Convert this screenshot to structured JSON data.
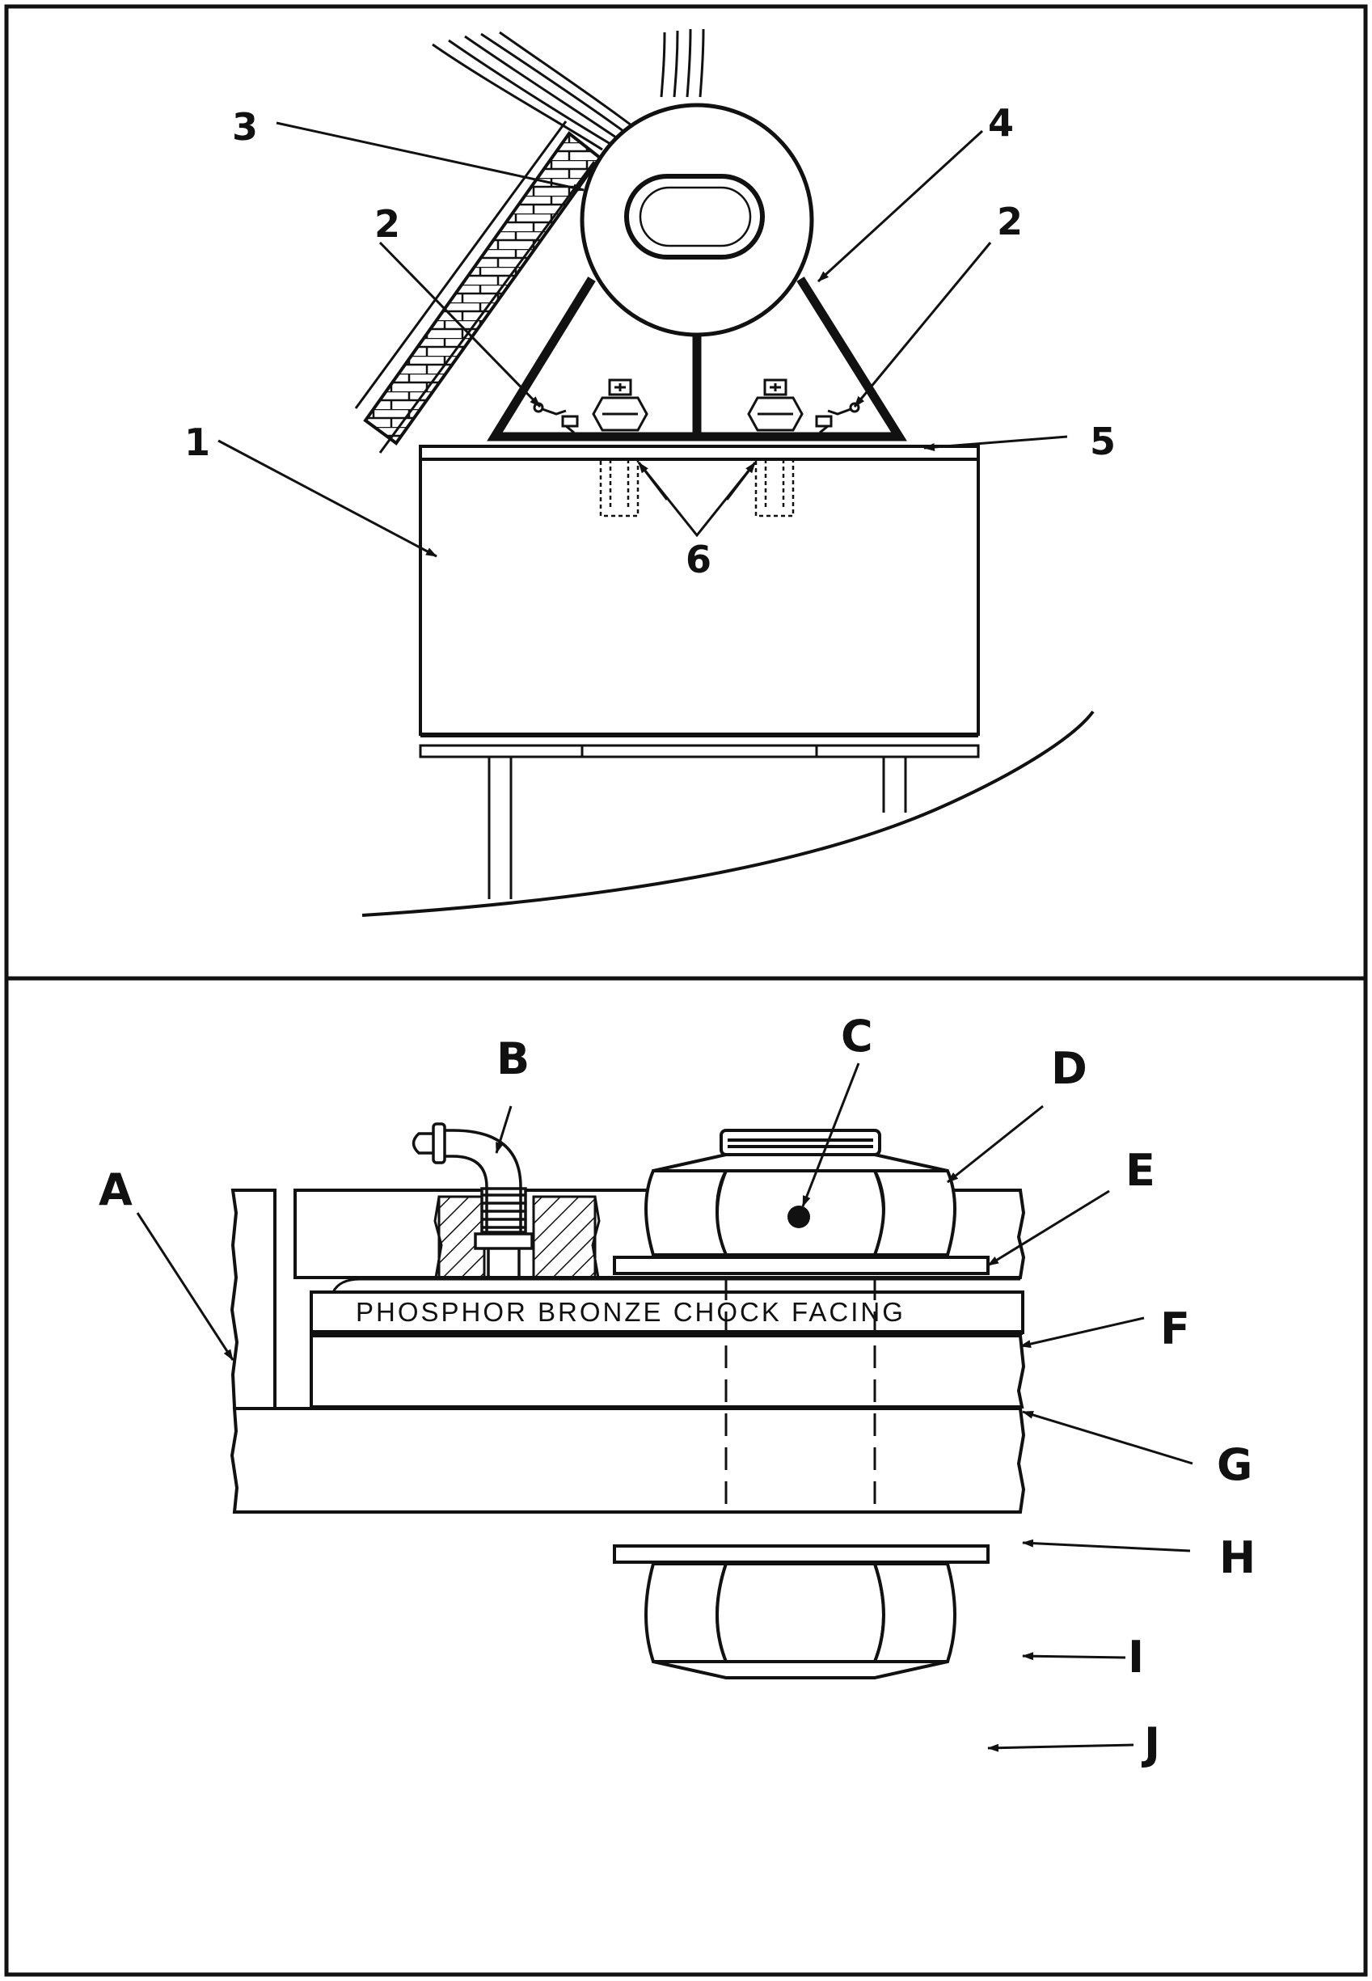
{
  "top_panel": {
    "labels": {
      "n1": "1",
      "n2_left": "2",
      "n2_right": "2",
      "n3": "3",
      "n4": "4",
      "n5": "5",
      "n6": "6"
    }
  },
  "bottom_panel": {
    "labels": {
      "A": "A",
      "B": "B",
      "C": "C",
      "D": "D",
      "E": "E",
      "F": "F",
      "G": "G",
      "H": "H",
      "I": "I",
      "J": "J"
    },
    "facing_text": "PHOSPHOR BRONZE CHOCK FACING"
  }
}
